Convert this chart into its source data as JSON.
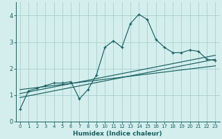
{
  "xlabel": "Humidex (Indice chaleur)",
  "bg_color": "#d4eeee",
  "grid_color": "#aacece",
  "line_color": "#1a6060",
  "xlim": [
    -0.5,
    23.5
  ],
  "ylim": [
    0,
    4.5
  ],
  "xticks": [
    0,
    1,
    2,
    3,
    4,
    5,
    6,
    7,
    8,
    9,
    10,
    11,
    12,
    13,
    14,
    15,
    16,
    17,
    18,
    19,
    20,
    21,
    22,
    23
  ],
  "yticks": [
    0,
    1,
    2,
    3,
    4
  ],
  "main_x": [
    0,
    1,
    2,
    3,
    4,
    5,
    6,
    7,
    8,
    9,
    10,
    11,
    12,
    13,
    14,
    15,
    16,
    17,
    18,
    19,
    20,
    21,
    22,
    23
  ],
  "main_y": [
    0.45,
    1.15,
    1.25,
    1.35,
    1.45,
    1.45,
    1.5,
    0.85,
    1.2,
    1.75,
    2.8,
    3.05,
    2.8,
    3.7,
    4.05,
    3.85,
    3.1,
    2.8,
    2.6,
    2.6,
    2.7,
    2.65,
    2.35,
    2.3
  ],
  "trend1_x": [
    0,
    23
  ],
  "trend1_y": [
    0.9,
    2.35
  ],
  "trend2_x": [
    0,
    23
  ],
  "trend2_y": [
    1.05,
    2.5
  ],
  "trend3_x": [
    0,
    23
  ],
  "trend3_y": [
    1.2,
    2.1
  ]
}
